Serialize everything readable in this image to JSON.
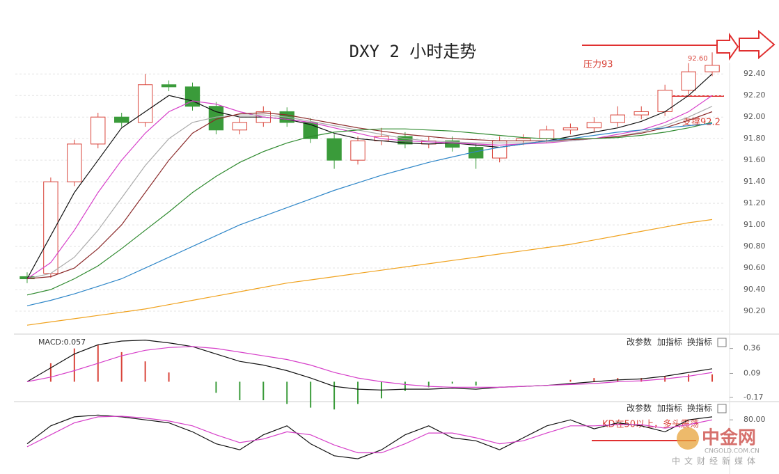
{
  "chart_data": [
    {
      "type": "candlestick",
      "title": "DXY 2 小时走势",
      "open": [
        90.52,
        90.55,
        91.4,
        91.75,
        92.0,
        91.95,
        92.3,
        92.28,
        92.1,
        91.88,
        91.95,
        92.05,
        91.95,
        91.8,
        91.6,
        91.78,
        91.82,
        91.75,
        91.78,
        91.72,
        91.62,
        91.78,
        91.8,
        91.88,
        91.9,
        91.95,
        92.02,
        92.05,
        92.25,
        92.42
      ],
      "high": [
        90.56,
        91.44,
        91.79,
        92.04,
        92.04,
        92.4,
        92.34,
        92.32,
        92.14,
        91.99,
        92.1,
        92.09,
        91.99,
        91.84,
        91.82,
        91.9,
        91.86,
        91.82,
        91.82,
        91.76,
        91.82,
        91.84,
        91.92,
        91.94,
        92.0,
        92.1,
        92.1,
        92.3,
        92.5,
        92.6
      ],
      "low": [
        90.46,
        90.51,
        91.36,
        91.71,
        91.91,
        91.91,
        92.24,
        92.06,
        91.84,
        91.84,
        91.91,
        91.91,
        91.76,
        91.52,
        91.56,
        91.74,
        91.71,
        91.71,
        91.68,
        91.52,
        91.58,
        91.74,
        91.76,
        91.84,
        91.86,
        91.91,
        91.98,
        92.01,
        92.21,
        92.38
      ],
      "close": [
        90.5,
        91.4,
        91.75,
        92.0,
        91.95,
        92.3,
        92.28,
        92.1,
        91.88,
        91.95,
        92.05,
        91.95,
        91.8,
        91.6,
        91.78,
        91.82,
        91.75,
        91.78,
        91.72,
        91.62,
        91.78,
        91.8,
        91.88,
        91.9,
        91.95,
        92.02,
        92.05,
        92.25,
        92.42,
        92.48
      ],
      "up_color": "#d9443a",
      "down_color": "#3a9b3a",
      "series": [
        {
          "color": "#111111",
          "values": [
            90.5,
            90.9,
            91.3,
            91.6,
            91.9,
            92.05,
            92.2,
            92.15,
            92.05,
            92.0,
            92.0,
            91.98,
            91.93,
            91.85,
            91.8,
            91.78,
            91.76,
            91.75,
            91.76,
            91.74,
            91.72,
            91.75,
            91.78,
            91.82,
            91.86,
            91.9,
            91.96,
            92.05,
            92.2,
            92.4
          ]
        },
        {
          "color": "#d63fc9",
          "values": [
            90.5,
            90.65,
            90.95,
            91.3,
            91.6,
            91.85,
            92.05,
            92.15,
            92.12,
            92.05,
            92.0,
            91.98,
            91.95,
            91.9,
            91.85,
            91.8,
            91.78,
            91.77,
            91.76,
            91.75,
            91.74,
            91.75,
            91.76,
            91.78,
            91.8,
            91.84,
            91.88,
            91.95,
            92.05,
            92.2
          ]
        },
        {
          "color": "#aaaaaa",
          "values": [
            90.5,
            90.55,
            90.7,
            90.95,
            91.25,
            91.55,
            91.8,
            91.95,
            92.0,
            92.02,
            92.02,
            92.0,
            91.96,
            91.92,
            91.88,
            91.84,
            91.8,
            91.78,
            91.77,
            91.76,
            91.76,
            91.76,
            91.77,
            91.78,
            91.8,
            91.82,
            91.86,
            91.92,
            92.0,
            92.1
          ]
        },
        {
          "color": "#8b2a2a",
          "values": [
            90.5,
            90.52,
            90.6,
            90.78,
            91.0,
            91.3,
            91.6,
            91.85,
            91.98,
            92.03,
            92.04,
            92.02,
            91.98,
            91.94,
            91.9,
            91.87,
            91.84,
            91.82,
            91.8,
            91.79,
            91.78,
            91.78,
            91.78,
            91.79,
            91.8,
            91.82,
            91.85,
            91.9,
            91.97,
            92.05
          ]
        },
        {
          "color": "#2f8a2f",
          "values": [
            90.35,
            90.4,
            90.5,
            90.62,
            90.78,
            90.95,
            91.12,
            91.3,
            91.45,
            91.58,
            91.68,
            91.76,
            91.82,
            91.86,
            91.88,
            91.89,
            91.89,
            91.88,
            91.87,
            91.85,
            91.83,
            91.81,
            91.8,
            91.8,
            91.8,
            91.81,
            91.83,
            91.86,
            91.9,
            91.95
          ]
        },
        {
          "color": "#2e86c8",
          "values": [
            90.25,
            90.3,
            90.36,
            90.43,
            90.5,
            90.6,
            90.7,
            90.8,
            90.9,
            91.0,
            91.08,
            91.16,
            91.24,
            91.32,
            91.39,
            91.46,
            91.52,
            91.58,
            91.63,
            91.68,
            91.72,
            91.75,
            91.78,
            91.8,
            91.83,
            91.86,
            91.88,
            91.9,
            91.92,
            91.94
          ]
        },
        {
          "color": "#f0a21e",
          "values": [
            90.07,
            90.1,
            90.13,
            90.16,
            90.19,
            90.22,
            90.26,
            90.3,
            90.34,
            90.38,
            90.42,
            90.46,
            90.49,
            90.52,
            90.55,
            90.58,
            90.61,
            90.64,
            90.67,
            90.7,
            90.73,
            90.76,
            90.79,
            90.82,
            90.86,
            90.9,
            90.94,
            90.98,
            91.02,
            91.05
          ]
        }
      ],
      "ylim": [
        90.0,
        92.55
      ],
      "yticks": [
        {
          "value": 90.2,
          "label": "90.20"
        },
        {
          "value": 90.4,
          "label": "90.40"
        },
        {
          "value": 90.6,
          "label": "90.60"
        },
        {
          "value": 90.8,
          "label": "90.80"
        },
        {
          "value": 91.0,
          "label": "91.00"
        },
        {
          "value": 91.2,
          "label": "91.20"
        },
        {
          "value": 91.4,
          "label": "91.40"
        },
        {
          "value": 91.6,
          "label": "91.60"
        },
        {
          "value": 91.8,
          "label": "91.80"
        },
        {
          "value": 92.0,
          "label": "92.00"
        },
        {
          "value": 92.2,
          "label": "92.20"
        },
        {
          "value": 92.4,
          "label": "92.40"
        }
      ],
      "grid": true
    },
    {
      "type": "macd",
      "label": "MACD:0.057",
      "series": [
        {
          "color": "#111111",
          "values": [
            0,
            0.15,
            0.3,
            0.4,
            0.44,
            0.45,
            0.42,
            0.38,
            0.3,
            0.22,
            0.18,
            0.12,
            0.04,
            -0.05,
            -0.08,
            -0.09,
            -0.08,
            -0.08,
            -0.07,
            -0.08,
            -0.06,
            -0.05,
            -0.04,
            -0.02,
            0,
            0.02,
            0.03,
            0.06,
            0.1,
            0.14
          ]
        },
        {
          "color": "#d63fc9",
          "values": [
            0,
            0.05,
            0.12,
            0.2,
            0.28,
            0.34,
            0.37,
            0.38,
            0.36,
            0.32,
            0.28,
            0.24,
            0.18,
            0.1,
            0.04,
            0,
            -0.03,
            -0.05,
            -0.06,
            -0.06,
            -0.06,
            -0.05,
            -0.04,
            -0.03,
            -0.02,
            0,
            0.01,
            0.03,
            0.06,
            0.1
          ]
        }
      ],
      "histogram": [
        0,
        0.2,
        0.36,
        0.4,
        0.32,
        0.22,
        0.1,
        0,
        -0.12,
        -0.2,
        -0.2,
        -0.24,
        -0.28,
        -0.3,
        -0.24,
        -0.18,
        -0.1,
        -0.06,
        -0.02,
        -0.04,
        0,
        0,
        0,
        0.02,
        0.04,
        0.04,
        0.04,
        0.06,
        0.08,
        0.08
      ],
      "up_color": "#d9443a",
      "down_color": "#3a9b3a",
      "ylim": [
        -0.2,
        0.5
      ],
      "yticks": [
        0.36,
        0.09,
        -0.17
      ]
    },
    {
      "type": "line",
      "series": [
        {
          "color": "#111111",
          "values": [
            40,
            70,
            85,
            88,
            85,
            80,
            75,
            60,
            40,
            30,
            55,
            70,
            40,
            20,
            15,
            30,
            55,
            70,
            50,
            45,
            30,
            50,
            70,
            80,
            65,
            75,
            70,
            60,
            80,
            85
          ]
        },
        {
          "color": "#d63fc9",
          "values": [
            35,
            55,
            75,
            85,
            86,
            83,
            78,
            70,
            55,
            42,
            48,
            60,
            55,
            38,
            25,
            25,
            40,
            58,
            58,
            50,
            40,
            45,
            58,
            70,
            70,
            72,
            72,
            66,
            72,
            80
          ]
        }
      ],
      "ylim": [
        0,
        100
      ],
      "yticks": [
        {
          "value": 80,
          "label": "80.00"
        }
      ]
    }
  ],
  "annotations": {
    "resistance": "压力93",
    "support": "支撑92.2",
    "high": "92.60",
    "kd_note": "KD在50以上，多头震荡"
  },
  "toolbar": [
    "改参数",
    "加指标",
    "换指标"
  ],
  "watermark": {
    "logo": "中金网",
    "site": "CNGOLD.COM.CN",
    "slogan": "中文财经新媒体"
  }
}
